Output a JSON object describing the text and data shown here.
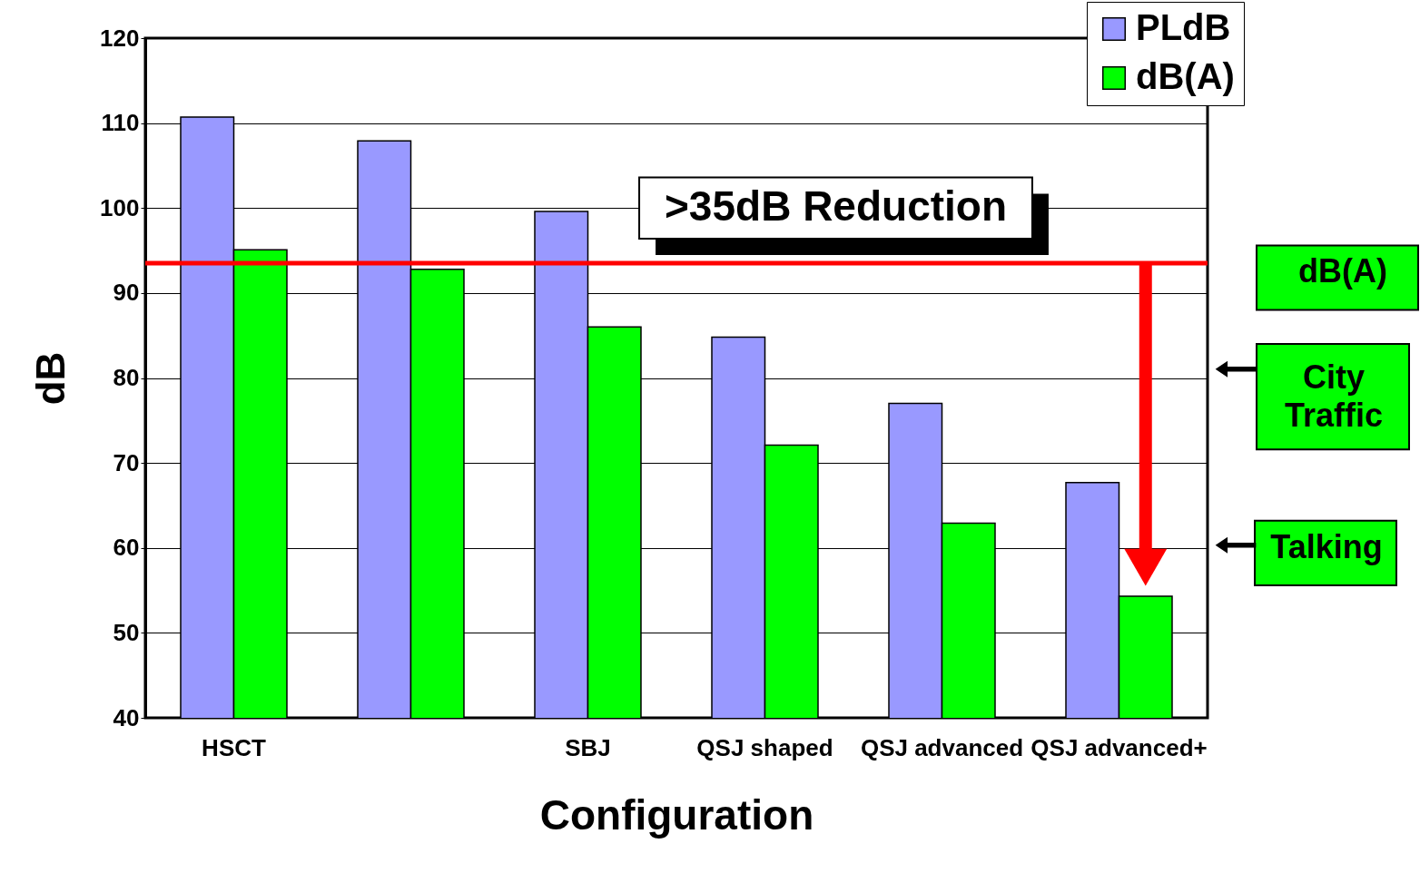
{
  "chart_data": {
    "type": "bar",
    "xlabel": "Configuration",
    "ylabel": "dB",
    "categories": [
      "HSCT",
      null,
      "SBJ",
      "QSJ shaped",
      "QSJ advanced",
      "QSJ advanced+"
    ],
    "series": [
      {
        "name": "PLdB",
        "color": "#9999ff",
        "values": [
          110.7,
          107.9,
          99.6,
          84.8,
          77.0,
          67.7
        ]
      },
      {
        "name": "dB(A)",
        "color": "#00ff00",
        "values": [
          95.1,
          92.8,
          86.0,
          72.1,
          62.9,
          54.3
        ]
      }
    ],
    "ylim": [
      40,
      120
    ],
    "yticks": [
      40,
      50,
      60,
      70,
      80,
      90,
      100,
      110,
      120
    ],
    "grid": "y",
    "legend": "top right",
    "ref_lines": [
      {
        "axis": "y",
        "value": 93.5,
        "color": "#ff0000"
      }
    ],
    "annotations": [
      ">35dB Reduction",
      "dB(A)",
      "City Traffic",
      "Talking"
    ]
  }
}
